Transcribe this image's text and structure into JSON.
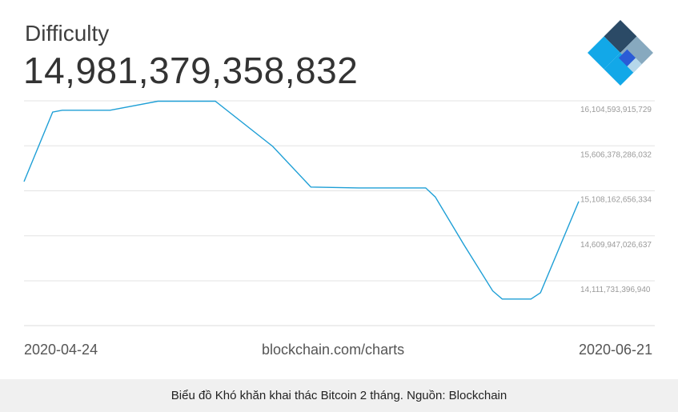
{
  "header": {
    "title": "Difficulty",
    "value": "14,981,379,358,832"
  },
  "logo": {
    "icon": "blockchain-logo-icon",
    "colors": [
      "#2b4a66",
      "#87a9bf",
      "#2a5bd6",
      "#12a8e8",
      "#b5d7ea"
    ]
  },
  "footer": {
    "start_date": "2020-04-24",
    "source": "blockchain.com/charts",
    "end_date": "2020-06-21"
  },
  "caption": "Biểu đồ Khó khăn khai thác Bitcoin 2 tháng. Nguồn: Blockchain",
  "chart_data": {
    "type": "line",
    "title": "Difficulty",
    "xlabel": "",
    "ylabel": "",
    "xlim": [
      "2020-04-24",
      "2020-06-21"
    ],
    "ylim": [
      13912444745000,
      16104593915729
    ],
    "y_ticks": [
      {
        "value": 16104593915729,
        "label": "16,104,593,915,729"
      },
      {
        "value": 15606378286032,
        "label": "15,606,378,286,032"
      },
      {
        "value": 15108162656334,
        "label": "15,108,162,656,334"
      },
      {
        "value": 14609947026637,
        "label": "14,609,947,026,637"
      },
      {
        "value": 14111731396940,
        "label": "14,111,731,396,940"
      }
    ],
    "grid": true,
    "line_color": "#1e9fd6",
    "series": [
      {
        "x": [
          "2020-04-24",
          "2020-04-27",
          "2020-04-28",
          "2020-05-03",
          "2020-05-08",
          "2020-05-14",
          "2020-05-20",
          "2020-05-24",
          "2020-05-29",
          "2020-05-30",
          "2020-06-05",
          "2020-06-06",
          "2020-06-09",
          "2020-06-12",
          "2020-06-13",
          "2020-06-16",
          "2020-06-17",
          "2020-06-21"
        ],
        "values": [
          15210000000000,
          15980000000000,
          16000000000000,
          16000000000000,
          16100000000000,
          16100000000000,
          15600000000000,
          15150000000000,
          15140000000000,
          15140000000000,
          15140000000000,
          15040000000000,
          14510000000000,
          14000000000000,
          13910000000000,
          13910000000000,
          13980000000000,
          14990000000000
        ]
      }
    ]
  }
}
